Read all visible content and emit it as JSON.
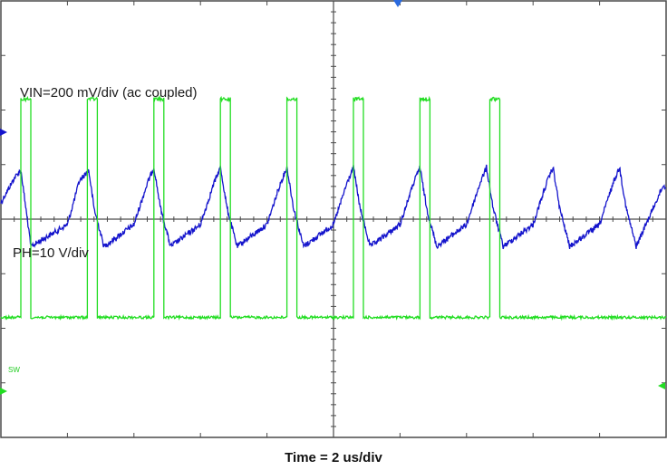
{
  "chart_data": {
    "type": "line",
    "title": "",
    "xlabel": "Time = 2 us/div",
    "ylabel": "",
    "x_divisions": 10,
    "y_divisions": 8,
    "grid": true,
    "annotations": {
      "vin": "VIN=200 mV/div (ac coupled)",
      "ph": "PH=10 V/div",
      "sw_marker": "SW"
    },
    "series": [
      {
        "color": "#1414cc",
        "x": [
          0,
          0.2,
          0.3,
          0.45,
          1.0,
          1.18,
          1.32,
          1.4,
          1.55,
          2.0,
          2.2,
          2.3,
          2.4,
          2.55,
          3.0,
          3.2,
          3.3,
          3.4,
          3.55,
          4.0,
          4.2,
          4.3,
          4.4,
          4.55,
          5.0,
          5.2,
          5.3,
          5.4,
          5.55,
          6.0,
          6.2,
          6.3,
          6.4,
          6.55,
          7.0,
          7.2,
          7.3,
          7.4,
          7.55,
          8.0,
          8.2,
          8.3,
          8.4,
          8.55,
          9.0,
          9.2,
          9.3,
          9.4,
          9.55,
          9.95
        ],
        "values": [
          0.3,
          0.75,
          0.9,
          -0.5,
          -0.1,
          0.7,
          0.9,
          0.2,
          -0.5,
          -0.1,
          0.65,
          0.95,
          0.2,
          -0.5,
          -0.1,
          0.65,
          0.95,
          0.2,
          -0.5,
          -0.1,
          0.65,
          0.95,
          0.2,
          -0.5,
          -0.1,
          0.65,
          0.95,
          0.2,
          -0.5,
          -0.1,
          0.65,
          0.95,
          0.2,
          -0.5,
          -0.1,
          0.65,
          0.95,
          0.2,
          -0.5,
          -0.1,
          0.65,
          0.95,
          0.2,
          -0.5,
          -0.1,
          0.65,
          0.95,
          0.2,
          -0.5,
          0.6
        ]
      },
      {
        "color": "#22dd22",
        "ground_div": -1.8,
        "high_div": 2.2,
        "pulses": [
          {
            "start": 0.3,
            "end": 0.45
          },
          {
            "start": 1.3,
            "end": 1.45
          },
          {
            "start": 2.3,
            "end": 2.45
          },
          {
            "start": 3.3,
            "end": 3.45
          },
          {
            "start": 4.3,
            "end": 4.45
          },
          {
            "start": 5.3,
            "end": 5.45
          },
          {
            "start": 6.3,
            "end": 6.45
          },
          {
            "start": 7.35,
            "end": 7.5
          }
        ]
      }
    ]
  }
}
